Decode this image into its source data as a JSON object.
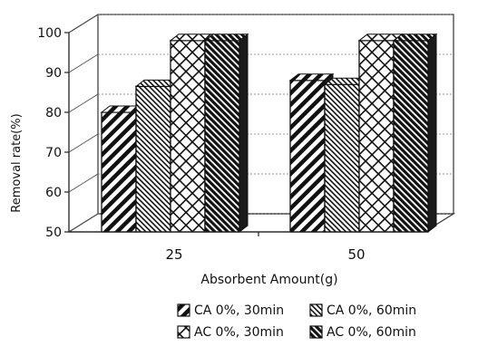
{
  "chart_data": {
    "type": "bar",
    "style": "3d",
    "title": "",
    "xlabel": "Absorbent Amount(g)",
    "ylabel": "Removal rate(%)",
    "ylim": [
      50,
      100
    ],
    "yticks": [
      "50",
      "60",
      "70",
      "80",
      "90",
      "100"
    ],
    "categories": [
      "25",
      "50"
    ],
    "grid": true,
    "legend_position": "bottom",
    "series": [
      {
        "name": "CA 0%, 30min",
        "values": [
          80,
          88
        ],
        "pattern": "diag-wide",
        "color": "#111111"
      },
      {
        "name": "CA 0%, 60min",
        "values": [
          86.5,
          87
        ],
        "pattern": "diag-fine",
        "color": "#111111"
      },
      {
        "name": "AC 0%, 30min",
        "values": [
          98,
          98
        ],
        "pattern": "crosshatch",
        "color": "#111111"
      },
      {
        "name": "AC 0%, 60min",
        "values": [
          98,
          98
        ],
        "pattern": "dense",
        "color": "#111111"
      }
    ]
  }
}
